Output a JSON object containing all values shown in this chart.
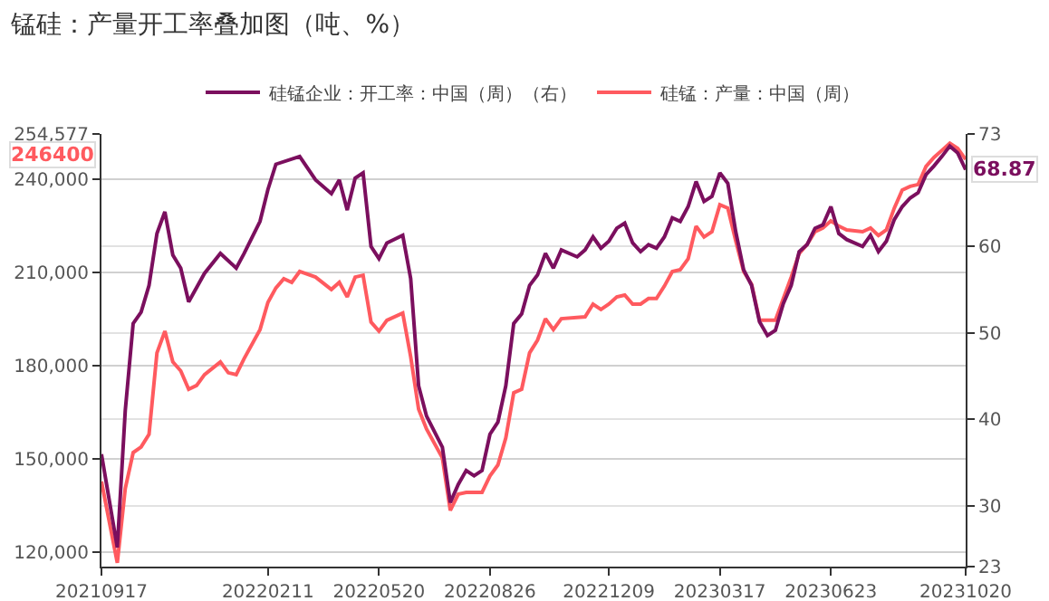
{
  "chart_data": {
    "type": "line",
    "title": "锰硅：产量开工率叠加图（吨、%）",
    "series": [
      {
        "name": "硅锰企业：开工率：中国（周）（右）",
        "color": "#7b0f5e",
        "axis": "y2",
        "x": [
          "2021-09-17",
          "2021-10-01",
          "2021-10-08",
          "2021-10-15",
          "2021-10-22",
          "2021-10-29",
          "2021-11-05",
          "2021-11-12",
          "2021-11-19",
          "2021-11-26",
          "2021-12-03",
          "2021-12-17",
          "2021-12-31",
          "2022-01-14",
          "2022-01-21",
          "2022-02-04",
          "2022-02-11",
          "2022-02-18",
          "2022-03-11",
          "2022-03-25",
          "2022-04-08",
          "2022-04-15",
          "2022-04-22",
          "2022-04-29",
          "2022-05-06",
          "2022-05-13",
          "2022-05-20",
          "2022-05-27",
          "2022-06-10",
          "2022-06-17",
          "2022-06-24",
          "2022-07-01",
          "2022-07-15",
          "2022-07-22",
          "2022-07-29",
          "2022-08-05",
          "2022-08-12",
          "2022-08-19",
          "2022-08-26",
          "2022-09-02",
          "2022-09-09",
          "2022-09-16",
          "2022-09-23",
          "2022-09-30",
          "2022-10-07",
          "2022-10-14",
          "2022-10-21",
          "2022-10-28",
          "2022-11-11",
          "2022-11-18",
          "2022-11-25",
          "2022-12-02",
          "2022-12-09",
          "2022-12-16",
          "2022-12-23",
          "2022-12-30",
          "2023-01-06",
          "2023-01-13",
          "2023-01-20",
          "2023-01-27",
          "2023-02-03",
          "2023-02-10",
          "2023-02-17",
          "2023-02-24",
          "2023-03-03",
          "2023-03-10",
          "2023-03-17",
          "2023-03-24",
          "2023-03-31",
          "2023-04-07",
          "2023-04-14",
          "2023-04-21",
          "2023-04-28",
          "2023-05-05",
          "2023-05-12",
          "2023-05-19",
          "2023-05-26",
          "2023-06-02",
          "2023-06-09",
          "2023-06-16",
          "2023-06-23",
          "2023-06-30",
          "2023-07-07",
          "2023-07-21",
          "2023-07-28",
          "2023-08-04",
          "2023-08-11",
          "2023-08-18",
          "2023-08-25",
          "2023-09-01",
          "2023-09-08",
          "2023-09-15",
          "2023-09-22",
          "2023-09-29",
          "2023-10-06",
          "2023-10-13",
          "2023-10-20"
        ],
        "values": [
          36.0,
          25.2,
          41.0,
          51.1,
          52.4,
          55.5,
          61.5,
          64.0,
          59.0,
          57.5,
          53.6,
          56.9,
          59.2,
          57.5,
          59.2,
          62.9,
          66.6,
          69.5,
          70.4,
          67.7,
          66.1,
          67.7,
          64.2,
          67.9,
          68.5,
          60.0,
          58.6,
          60.4,
          61.3,
          56.3,
          43.9,
          40.4,
          36.8,
          30.4,
          32.5,
          34.1,
          33.5,
          34.1,
          38.3,
          39.7,
          43.9,
          51.1,
          52.2,
          55.5,
          56.7,
          59.2,
          57.5,
          59.6,
          58.8,
          59.6,
          61.1,
          59.8,
          60.6,
          62.1,
          62.7,
          60.4,
          59.4,
          60.2,
          59.8,
          61.1,
          63.3,
          62.9,
          64.6,
          67.5,
          65.2,
          65.8,
          68.5,
          67.3,
          61.7,
          57.3,
          55.5,
          51.3,
          49.7,
          50.3,
          53.4,
          55.5,
          59.4,
          60.2,
          62.1,
          62.5,
          64.6,
          61.5,
          60.8,
          60.0,
          61.3,
          59.4,
          60.6,
          63.1,
          64.6,
          65.6,
          66.2,
          68.3,
          69.3,
          70.4,
          71.6,
          70.8,
          68.87
        ]
      },
      {
        "name": "硅锰：产量：中国（周）",
        "color": "#ff5a5f",
        "x": [
          "2021-09-17",
          "2021-10-01",
          "2021-10-08",
          "2021-10-15",
          "2021-10-22",
          "2021-10-29",
          "2021-11-05",
          "2021-11-12",
          "2021-11-19",
          "2021-11-26",
          "2021-12-03",
          "2021-12-10",
          "2021-12-17",
          "2021-12-31",
          "2022-01-07",
          "2022-01-14",
          "2022-01-21",
          "2022-02-04",
          "2022-02-11",
          "2022-02-18",
          "2022-02-25",
          "2022-03-04",
          "2022-03-11",
          "2022-03-25",
          "2022-04-08",
          "2022-04-15",
          "2022-04-22",
          "2022-04-29",
          "2022-05-06",
          "2022-05-13",
          "2022-05-20",
          "2022-05-27",
          "2022-06-10",
          "2022-06-17",
          "2022-06-24",
          "2022-07-01",
          "2022-07-15",
          "2022-07-22",
          "2022-07-29",
          "2022-08-05",
          "2022-08-19",
          "2022-08-26",
          "2022-09-02",
          "2022-09-09",
          "2022-09-16",
          "2022-09-23",
          "2022-09-30",
          "2022-10-07",
          "2022-10-14",
          "2022-10-21",
          "2022-10-28",
          "2022-11-18",
          "2022-11-25",
          "2022-12-02",
          "2022-12-09",
          "2022-12-16",
          "2022-12-23",
          "2022-12-30",
          "2023-01-06",
          "2023-01-13",
          "2023-01-20",
          "2023-01-27",
          "2023-02-03",
          "2023-02-10",
          "2023-02-17",
          "2023-02-24",
          "2023-03-03",
          "2023-03-10",
          "2023-03-17",
          "2023-03-24",
          "2023-03-31",
          "2023-04-07",
          "2023-04-14",
          "2023-04-21",
          "2023-04-28",
          "2023-05-05",
          "2023-05-12",
          "2023-05-19",
          "2023-05-26",
          "2023-06-02",
          "2023-06-09",
          "2023-06-16",
          "2023-06-23",
          "2023-06-30",
          "2023-07-07",
          "2023-07-21",
          "2023-07-28",
          "2023-08-04",
          "2023-08-11",
          "2023-08-18",
          "2023-08-25",
          "2023-09-01",
          "2023-09-08",
          "2023-09-15",
          "2023-09-22",
          "2023-09-29",
          "2023-10-06",
          "2023-10-13",
          "2023-10-20"
        ],
        "values": [
          142700,
          116500,
          140400,
          152000,
          153800,
          157900,
          184100,
          191100,
          181200,
          178300,
          172400,
          173600,
          177100,
          181200,
          177700,
          177100,
          182300,
          191600,
          200400,
          205000,
          208000,
          206800,
          210300,
          208500,
          204500,
          206800,
          202100,
          208500,
          209100,
          194000,
          191100,
          194600,
          196900,
          182900,
          166000,
          159600,
          150300,
          133400,
          138600,
          139200,
          139200,
          144500,
          148000,
          156700,
          171300,
          172400,
          184100,
          188200,
          195100,
          191600,
          195100,
          195700,
          199800,
          198100,
          199800,
          202100,
          202700,
          199800,
          199800,
          201600,
          201600,
          205600,
          210300,
          210900,
          214400,
          224900,
          221400,
          223100,
          231800,
          230700,
          220200,
          210300,
          206200,
          194600,
          194600,
          194600,
          201600,
          208500,
          216100,
          219000,
          223100,
          224300,
          226600,
          224900,
          223700,
          223100,
          224300,
          221900,
          223700,
          230700,
          236500,
          237700,
          238300,
          244100,
          247000,
          249300,
          251600,
          249900,
          246400
        ]
      }
    ],
    "annotations": [
      "68.87",
      "246400"
    ],
    "xlim": [
      "2021-09-17",
      "2023-10-20"
    ],
    "xticks": [
      {
        "value": "2021-09-17",
        "label": "20210917"
      },
      {
        "value": "2022-02-11",
        "label": "20220211"
      },
      {
        "value": "2022-05-20",
        "label": "20220520"
      },
      {
        "value": "2022-08-26",
        "label": "20220826"
      },
      {
        "value": "2022-12-09",
        "label": "20221209"
      },
      {
        "value": "2023-03-17",
        "label": "20230317"
      },
      {
        "value": "2023-06-23",
        "label": "20230623"
      },
      {
        "value": "2023-10-20",
        "label": "20231020"
      }
    ],
    "ylim": [
      115300,
      254577
    ],
    "yticks": [
      {
        "value": 120000,
        "label": "120,000"
      },
      {
        "value": 150000,
        "label": "150,000"
      },
      {
        "value": 180000,
        "label": "180,000"
      },
      {
        "value": 210000,
        "label": "210,000"
      },
      {
        "value": 240000,
        "label": "240,000"
      },
      {
        "value": 254577,
        "label": "254,577"
      }
    ],
    "y2lim": [
      23,
      73
    ],
    "y2ticks": [
      23,
      30,
      40,
      50,
      60,
      73
    ],
    "grid": "y",
    "legend": "top",
    "line_style": "solid"
  }
}
